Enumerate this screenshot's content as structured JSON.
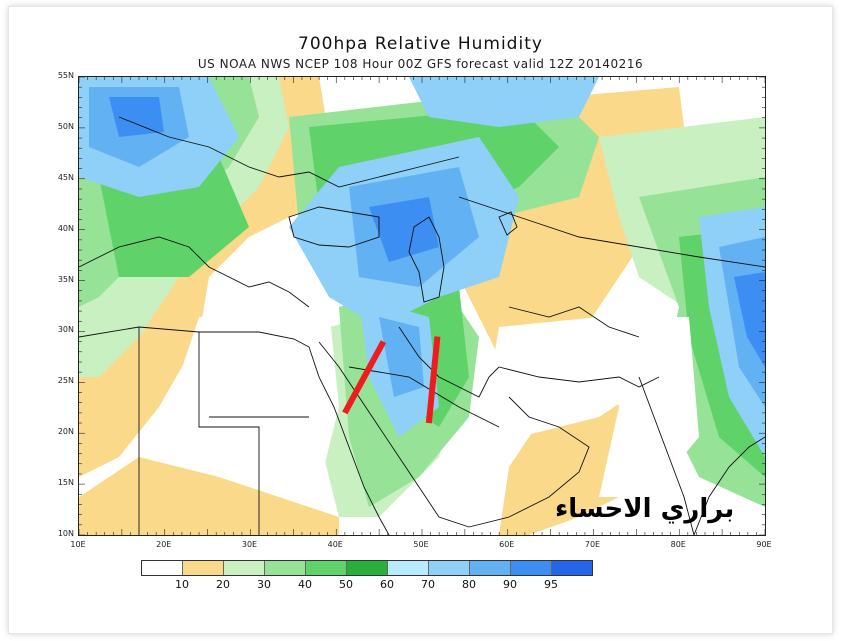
{
  "title": "700hpa Relative Humidity",
  "subtitle": "US NOAA NWS NCEP 108 Hour 00Z GFS forecast valid 12Z 20140216",
  "watermark": "براري الاحساء",
  "lat_labels": [
    "55N",
    "50N",
    "45N",
    "40N",
    "35N",
    "30N",
    "25N",
    "20N",
    "15N",
    "10N"
  ],
  "lon_labels": [
    "10E",
    "20E",
    "30E",
    "40E",
    "50E",
    "60E",
    "70E",
    "80E",
    "90E"
  ],
  "legend": {
    "labels": [
      "10",
      "20",
      "30",
      "40",
      "50",
      "60",
      "70",
      "80",
      "90",
      "95"
    ],
    "colors": [
      "#ffffff",
      "#fbd98b",
      "#c8f0c0",
      "#96e296",
      "#5fd269",
      "#28b03a",
      "#b9eaff",
      "#8ed0f7",
      "#62b1f3",
      "#3d8ef2",
      "#2566e8"
    ]
  },
  "annotations": [
    {
      "name": "red-line-west",
      "from": [
        41,
        22
      ],
      "to": [
        45.5,
        29
      ]
    },
    {
      "name": "red-line-east",
      "from": [
        50.8,
        21
      ],
      "to": [
        51.8,
        29.5
      ]
    }
  ]
}
